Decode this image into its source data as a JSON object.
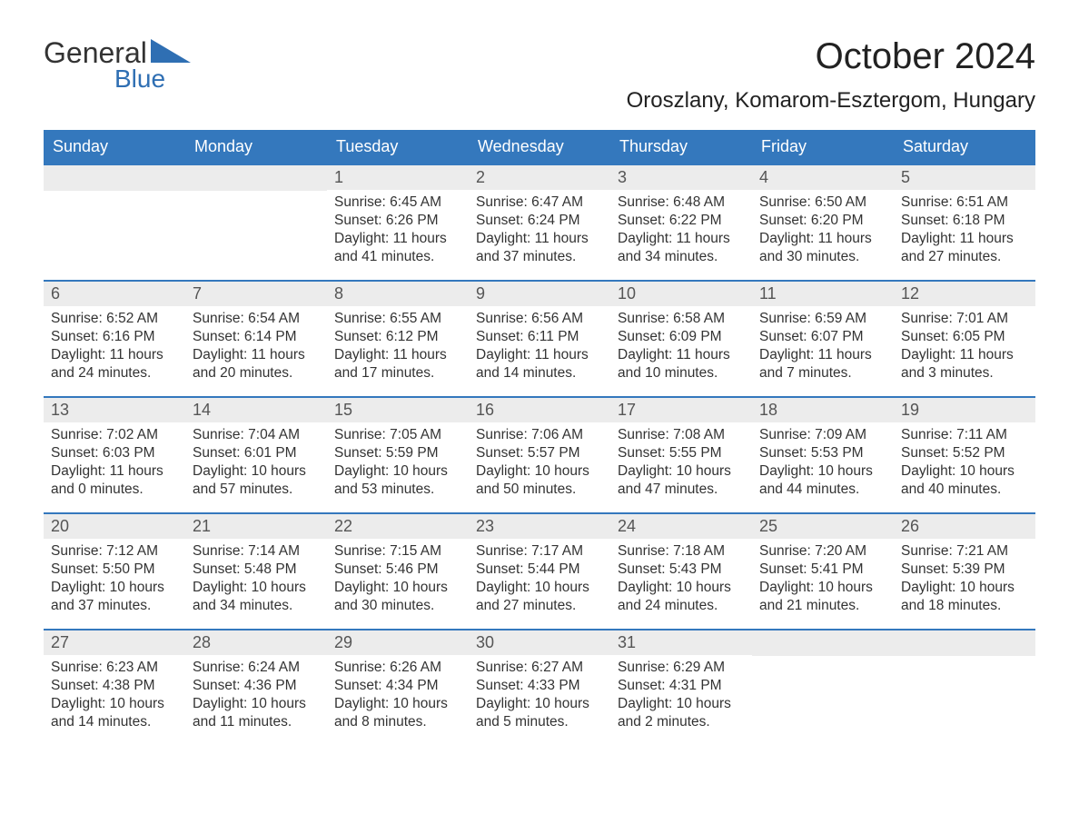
{
  "logo": {
    "text_general": "General",
    "text_blue": "Blue",
    "tri_color": "#2f6fb3"
  },
  "title": "October 2024",
  "location": "Oroszlany, Komarom-Esztergom, Hungary",
  "colors": {
    "header_bg": "#3478bd",
    "header_text": "#ffffff",
    "accent_line": "#3478bd",
    "daynum_bg": "#ececec",
    "body_text": "#333333",
    "logo_blue": "#2f6fb3"
  },
  "typography": {
    "month_title_fontsize": 40,
    "location_fontsize": 24,
    "day_header_fontsize": 18,
    "daynum_fontsize": 18,
    "cell_fontsize": 15.5
  },
  "grid": {
    "columns": 7,
    "weeks": 5,
    "first_weekday_index": 2
  },
  "day_names": [
    "Sunday",
    "Monday",
    "Tuesday",
    "Wednesday",
    "Thursday",
    "Friday",
    "Saturday"
  ],
  "days": [
    {
      "n": 1,
      "sunrise": "6:45 AM",
      "sunset": "6:26 PM",
      "daylight_h": 11,
      "daylight_m": 41
    },
    {
      "n": 2,
      "sunrise": "6:47 AM",
      "sunset": "6:24 PM",
      "daylight_h": 11,
      "daylight_m": 37
    },
    {
      "n": 3,
      "sunrise": "6:48 AM",
      "sunset": "6:22 PM",
      "daylight_h": 11,
      "daylight_m": 34
    },
    {
      "n": 4,
      "sunrise": "6:50 AM",
      "sunset": "6:20 PM",
      "daylight_h": 11,
      "daylight_m": 30
    },
    {
      "n": 5,
      "sunrise": "6:51 AM",
      "sunset": "6:18 PM",
      "daylight_h": 11,
      "daylight_m": 27
    },
    {
      "n": 6,
      "sunrise": "6:52 AM",
      "sunset": "6:16 PM",
      "daylight_h": 11,
      "daylight_m": 24
    },
    {
      "n": 7,
      "sunrise": "6:54 AM",
      "sunset": "6:14 PM",
      "daylight_h": 11,
      "daylight_m": 20
    },
    {
      "n": 8,
      "sunrise": "6:55 AM",
      "sunset": "6:12 PM",
      "daylight_h": 11,
      "daylight_m": 17
    },
    {
      "n": 9,
      "sunrise": "6:56 AM",
      "sunset": "6:11 PM",
      "daylight_h": 11,
      "daylight_m": 14
    },
    {
      "n": 10,
      "sunrise": "6:58 AM",
      "sunset": "6:09 PM",
      "daylight_h": 11,
      "daylight_m": 10
    },
    {
      "n": 11,
      "sunrise": "6:59 AM",
      "sunset": "6:07 PM",
      "daylight_h": 11,
      "daylight_m": 7
    },
    {
      "n": 12,
      "sunrise": "7:01 AM",
      "sunset": "6:05 PM",
      "daylight_h": 11,
      "daylight_m": 3
    },
    {
      "n": 13,
      "sunrise": "7:02 AM",
      "sunset": "6:03 PM",
      "daylight_h": 11,
      "daylight_m": 0
    },
    {
      "n": 14,
      "sunrise": "7:04 AM",
      "sunset": "6:01 PM",
      "daylight_h": 10,
      "daylight_m": 57
    },
    {
      "n": 15,
      "sunrise": "7:05 AM",
      "sunset": "5:59 PM",
      "daylight_h": 10,
      "daylight_m": 53
    },
    {
      "n": 16,
      "sunrise": "7:06 AM",
      "sunset": "5:57 PM",
      "daylight_h": 10,
      "daylight_m": 50
    },
    {
      "n": 17,
      "sunrise": "7:08 AM",
      "sunset": "5:55 PM",
      "daylight_h": 10,
      "daylight_m": 47
    },
    {
      "n": 18,
      "sunrise": "7:09 AM",
      "sunset": "5:53 PM",
      "daylight_h": 10,
      "daylight_m": 44
    },
    {
      "n": 19,
      "sunrise": "7:11 AM",
      "sunset": "5:52 PM",
      "daylight_h": 10,
      "daylight_m": 40
    },
    {
      "n": 20,
      "sunrise": "7:12 AM",
      "sunset": "5:50 PM",
      "daylight_h": 10,
      "daylight_m": 37
    },
    {
      "n": 21,
      "sunrise": "7:14 AM",
      "sunset": "5:48 PM",
      "daylight_h": 10,
      "daylight_m": 34
    },
    {
      "n": 22,
      "sunrise": "7:15 AM",
      "sunset": "5:46 PM",
      "daylight_h": 10,
      "daylight_m": 30
    },
    {
      "n": 23,
      "sunrise": "7:17 AM",
      "sunset": "5:44 PM",
      "daylight_h": 10,
      "daylight_m": 27
    },
    {
      "n": 24,
      "sunrise": "7:18 AM",
      "sunset": "5:43 PM",
      "daylight_h": 10,
      "daylight_m": 24
    },
    {
      "n": 25,
      "sunrise": "7:20 AM",
      "sunset": "5:41 PM",
      "daylight_h": 10,
      "daylight_m": 21
    },
    {
      "n": 26,
      "sunrise": "7:21 AM",
      "sunset": "5:39 PM",
      "daylight_h": 10,
      "daylight_m": 18
    },
    {
      "n": 27,
      "sunrise": "6:23 AM",
      "sunset": "4:38 PM",
      "daylight_h": 10,
      "daylight_m": 14
    },
    {
      "n": 28,
      "sunrise": "6:24 AM",
      "sunset": "4:36 PM",
      "daylight_h": 10,
      "daylight_m": 11
    },
    {
      "n": 29,
      "sunrise": "6:26 AM",
      "sunset": "4:34 PM",
      "daylight_h": 10,
      "daylight_m": 8
    },
    {
      "n": 30,
      "sunrise": "6:27 AM",
      "sunset": "4:33 PM",
      "daylight_h": 10,
      "daylight_m": 5
    },
    {
      "n": 31,
      "sunrise": "6:29 AM",
      "sunset": "4:31 PM",
      "daylight_h": 10,
      "daylight_m": 2
    }
  ],
  "labels": {
    "sunrise_prefix": "Sunrise: ",
    "sunset_prefix": "Sunset: ",
    "daylight_prefix": "Daylight: ",
    "hours_word": " hours",
    "and_word": "and ",
    "minutes_word": " minutes."
  }
}
